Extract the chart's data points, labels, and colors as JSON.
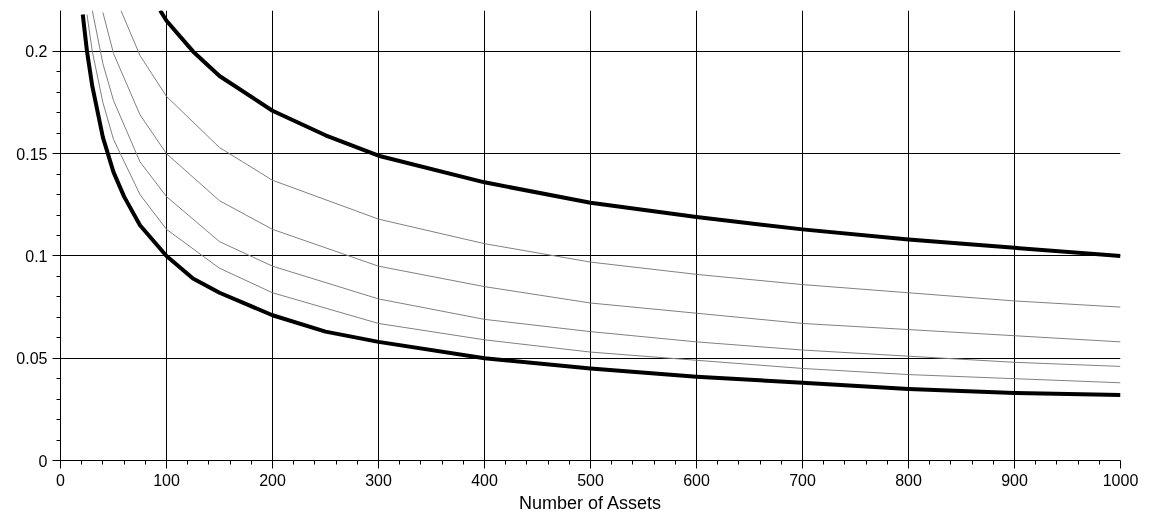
{
  "chart_data": {
    "type": "line",
    "xlabel": "Number of Assets",
    "xlim": [
      0,
      1000
    ],
    "ylim": [
      0,
      0.22
    ],
    "xticks": [
      0,
      100,
      200,
      300,
      400,
      500,
      600,
      700,
      800,
      900,
      1000
    ],
    "yticks": [
      0,
      0.05,
      0.1,
      0.15,
      0.2
    ],
    "grid": true,
    "marker": "none",
    "line_style": "solid",
    "series": [
      {
        "color": "#000000",
        "x": [
          21,
          25,
          30,
          40,
          50,
          60,
          75,
          100,
          125,
          150,
          200,
          250,
          300,
          400,
          500,
          600,
          700,
          800,
          900,
          1000
        ],
        "values": [
          0.218,
          0.2,
          0.183,
          0.158,
          0.141,
          0.129,
          0.115,
          0.1,
          0.089,
          0.082,
          0.071,
          0.063,
          0.058,
          0.05,
          0.045,
          0.041,
          0.038,
          0.035,
          0.033,
          0.032
        ]
      },
      {
        "color": "#000000",
        "x": [
          94,
          100,
          125,
          150,
          200,
          250,
          300,
          400,
          500,
          600,
          700,
          800,
          900,
          1000
        ],
        "values": [
          0.22,
          0.215,
          0.2,
          0.188,
          0.171,
          0.159,
          0.149,
          0.136,
          0.126,
          0.119,
          0.113,
          0.108,
          0.104,
          0.1
        ]
      },
      {
        "color": "#808080",
        "x": [
          57,
          75,
          100,
          150,
          200,
          300,
          400,
          500,
          600,
          700,
          800,
          900,
          1000
        ],
        "values": [
          0.22,
          0.198,
          0.178,
          0.153,
          0.137,
          0.118,
          0.106,
          0.097,
          0.091,
          0.086,
          0.082,
          0.078,
          0.075
        ]
      },
      {
        "color": "#808080",
        "x": [
          40,
          50,
          75,
          100,
          150,
          200,
          300,
          400,
          500,
          600,
          700,
          800,
          900,
          1000
        ],
        "values": [
          0.219,
          0.199,
          0.169,
          0.15,
          0.127,
          0.113,
          0.095,
          0.085,
          0.077,
          0.072,
          0.067,
          0.064,
          0.061,
          0.058
        ]
      },
      {
        "color": "#808080",
        "x": [
          30,
          40,
          50,
          75,
          100,
          150,
          200,
          300,
          400,
          500,
          600,
          700,
          800,
          900,
          1000
        ],
        "values": [
          0.22,
          0.194,
          0.176,
          0.146,
          0.129,
          0.107,
          0.095,
          0.079,
          0.069,
          0.063,
          0.058,
          0.054,
          0.051,
          0.048,
          0.046
        ]
      },
      {
        "color": "#808080",
        "x": [
          25,
          30,
          40,
          50,
          75,
          100,
          150,
          200,
          300,
          400,
          500,
          600,
          700,
          800,
          900,
          1000
        ],
        "values": [
          0.218,
          0.2,
          0.175,
          0.157,
          0.13,
          0.113,
          0.094,
          0.082,
          0.067,
          0.059,
          0.053,
          0.049,
          0.045,
          0.042,
          0.04,
          0.038
        ]
      }
    ]
  }
}
